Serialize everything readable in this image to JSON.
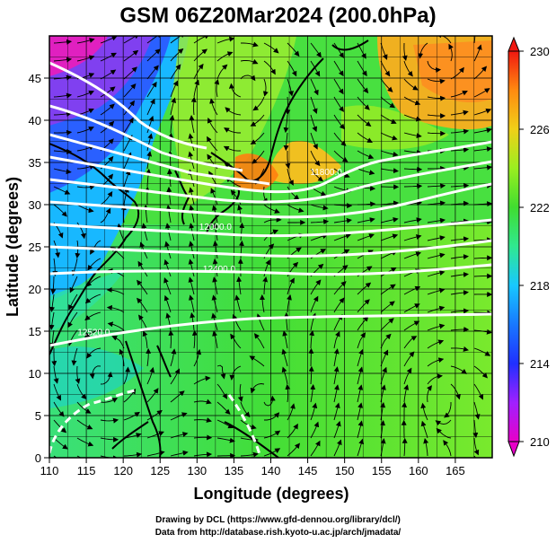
{
  "title": "GSM 06Z20Mar2024 (200.0hPa)",
  "map": {
    "xlabel": "Longitude (degrees)",
    "ylabel": "Latitude  (degrees)",
    "xlim": [
      110,
      170
    ],
    "ylim": [
      0,
      50
    ],
    "x_ticks": [
      110,
      115,
      120,
      125,
      130,
      135,
      140,
      145,
      150,
      155,
      160,
      165
    ],
    "y_ticks": [
      0,
      5,
      10,
      15,
      20,
      25,
      30,
      35,
      40,
      45
    ],
    "grid": true,
    "fields": [
      "temperature (shaded)",
      "geopotential height (white contours)",
      "wind (streamlines)"
    ],
    "contour_labels": [
      {
        "text": "11800.0",
        "lon": 147.5,
        "lat": 33.5
      },
      {
        "text": "12000.0",
        "lon": 132.5,
        "lat": 27.0
      },
      {
        "text": "12400.0",
        "lon": 133.0,
        "lat": 22.0
      },
      {
        "text": "12520.0",
        "lon": 116.0,
        "lat": 14.5
      }
    ]
  },
  "colorbar": {
    "min": 210,
    "max": 230,
    "tick_labels": [
      "210",
      "214",
      "218",
      "222",
      "226",
      "230"
    ],
    "ticks": [
      210,
      214,
      218,
      222,
      226,
      230
    ],
    "colors": [
      "#e800c8",
      "#a020ff",
      "#2030ff",
      "#18b8ff",
      "#30e890",
      "#40dd30",
      "#a8ee20",
      "#f0c818",
      "#ff8a10",
      "#f01810"
    ]
  },
  "credits": {
    "line1": "Drawing by DCL (https://www.gfd-dennou.org/library/dcl/)",
    "line2": "Data from http://database.rish.kyoto-u.ac.jp/arch/jmadata/"
  }
}
